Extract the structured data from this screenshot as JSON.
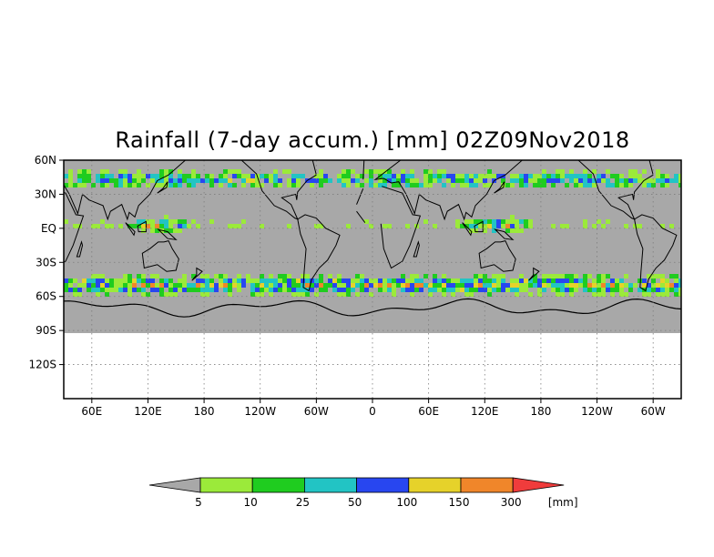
{
  "title": "Rainfall (7-day accum.) [mm] 02Z09Nov2018",
  "map": {
    "lat_labels": [
      "60N",
      "30N",
      "EQ",
      "30S",
      "60S",
      "90S",
      "120S"
    ],
    "lon_labels": [
      "60E",
      "120E",
      "180",
      "120W",
      "60W",
      "0",
      "60E",
      "120E",
      "180",
      "120W",
      "60W"
    ],
    "lat_range": [
      -150,
      60
    ],
    "lon_range_deg_east_from": [
      30,
      360,
      720
    ],
    "grid": "dotted",
    "no_data_color": "#a8a8a8",
    "ocean_mask_below_90S": true
  },
  "colorbar": {
    "tick_labels": [
      "5",
      "10",
      "25",
      "50",
      "100",
      "150",
      "300"
    ],
    "unit_label": "[mm]",
    "colors": [
      "#a8a8a8",
      "#9bea3a",
      "#1fcc1f",
      "#22c4c4",
      "#2846f0",
      "#e6d22a",
      "#f0862a",
      "#f03c3c"
    ],
    "bins": [
      "<5",
      "5-10",
      "10-25",
      "25-50",
      "50-100",
      "100-150",
      "150-300",
      ">300"
    ]
  },
  "colors": {
    "background": "#ffffff",
    "frame": "#000000",
    "gridline": "#7d7d7d",
    "coast": "#000000"
  }
}
